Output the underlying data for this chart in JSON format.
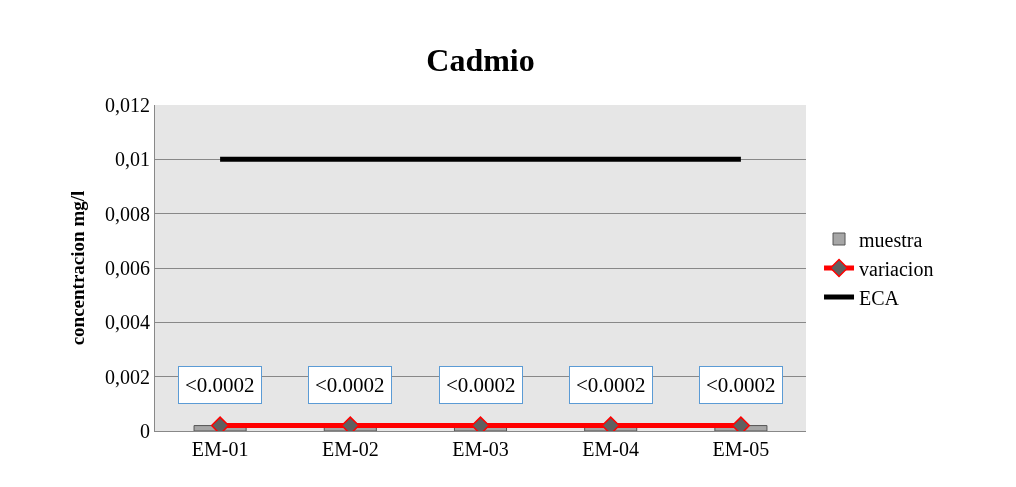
{
  "chart_data": {
    "type": "bar",
    "title": "Cadmio",
    "ylabel": "concentracion mg/l",
    "categories": [
      "EM-01",
      "EM-02",
      "EM-03",
      "EM-04",
      "EM-05"
    ],
    "series": [
      {
        "name": "muestra",
        "color": "#a6a6a6",
        "values": [
          0.0002,
          0.0002,
          0.0002,
          0.0002,
          0.0002
        ],
        "value_labels": [
          "<0.0002",
          "<0.0002",
          "<0.0002",
          "<0.0002",
          "<0.0002"
        ]
      },
      {
        "name": "variacion",
        "type": "line",
        "color": "#ff0000",
        "marker": "diamond",
        "values": [
          0.0002,
          0.0002,
          0.0002,
          0.0002,
          0.0002
        ]
      },
      {
        "name": "ECA",
        "type": "line",
        "color": "#000000",
        "marker": "none",
        "values": [
          0.01,
          0.01,
          0.01,
          0.01,
          0.01
        ]
      }
    ],
    "ylim": [
      0,
      0.012
    ],
    "yticks": [
      {
        "value": 0,
        "label": "0"
      },
      {
        "value": 0.002,
        "label": "0,002"
      },
      {
        "value": 0.004,
        "label": "0,004"
      },
      {
        "value": 0.006,
        "label": "0,006"
      },
      {
        "value": 0.008,
        "label": "0,008"
      },
      {
        "value": 0.01,
        "label": "0,01"
      },
      {
        "value": 0.012,
        "label": "0,012"
      }
    ],
    "grid": "y",
    "legend": "right"
  }
}
